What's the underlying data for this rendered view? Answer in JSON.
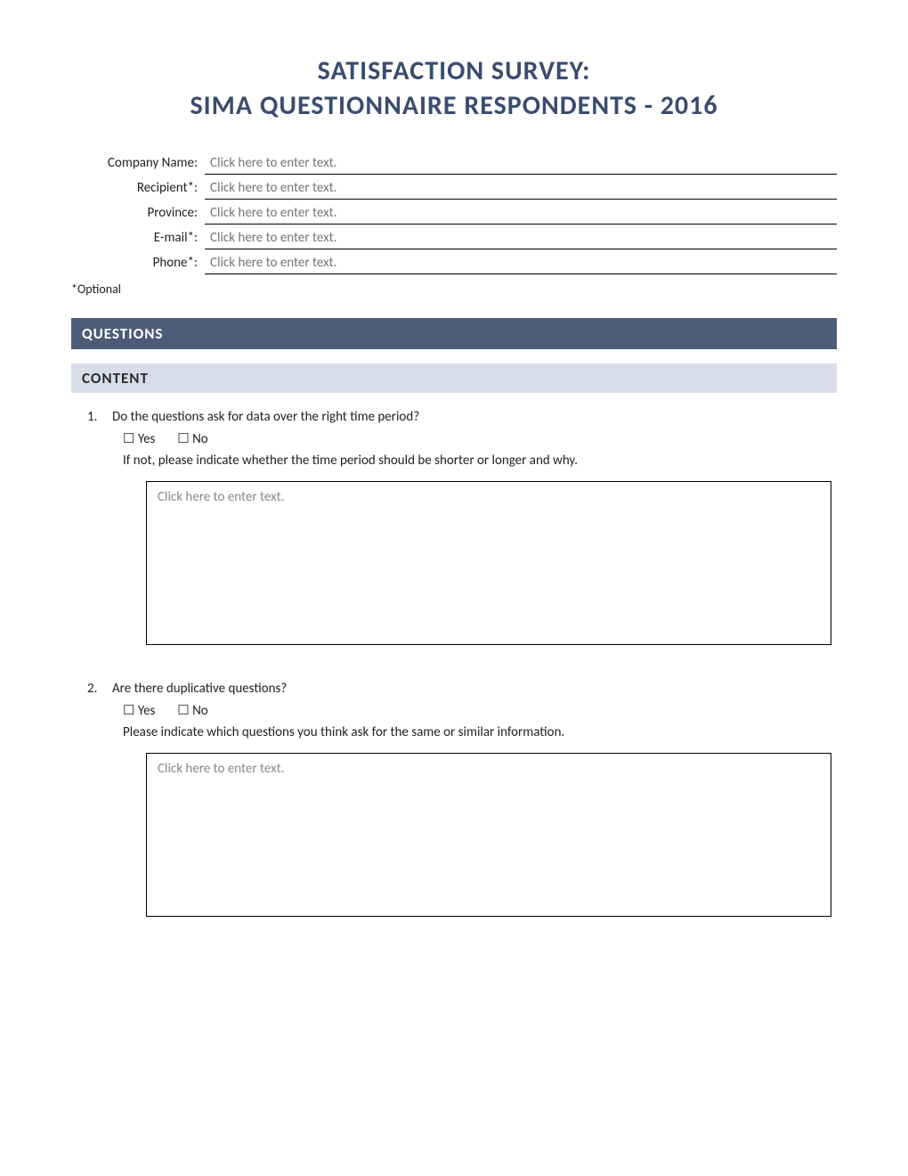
{
  "title_line1": "SATISFACTION SURVEY:",
  "title_line2": "SIMA QUESTIONNAIRE RESPONDENTS - 2016",
  "info_fields": [
    {
      "label": "Company Name:",
      "placeholder": "Click here to enter text."
    },
    {
      "label": "Recipient*:",
      "placeholder": "Click here to enter text."
    },
    {
      "label": "Province:",
      "placeholder": "Click here to enter text."
    },
    {
      "label": "E-mail*:",
      "placeholder": "Click here to enter text."
    },
    {
      "label": "Phone*:",
      "placeholder": "Click here to enter text."
    }
  ],
  "optional_note": "*Optional",
  "section_questions": "QUESTIONS",
  "section_content": "CONTENT",
  "yes_label": "Yes",
  "no_label": "No",
  "checkbox_glyph": "☐",
  "textarea_placeholder": "Click here to enter text.",
  "questions": [
    {
      "number": "1.",
      "text": "Do the questions ask for data over the right time period?",
      "followup": "If not, please indicate whether the time period should be shorter or longer and why."
    },
    {
      "number": "2.",
      "text": "Are there duplicative questions?",
      "followup": "Please indicate which questions you think ask for the same or similar information."
    }
  ],
  "colors": {
    "title_color": "#3a4d6e",
    "dark_header_bg": "#4c5c78",
    "light_header_bg": "#d8dde9",
    "placeholder_color": "#888888",
    "text_color": "#222222"
  }
}
